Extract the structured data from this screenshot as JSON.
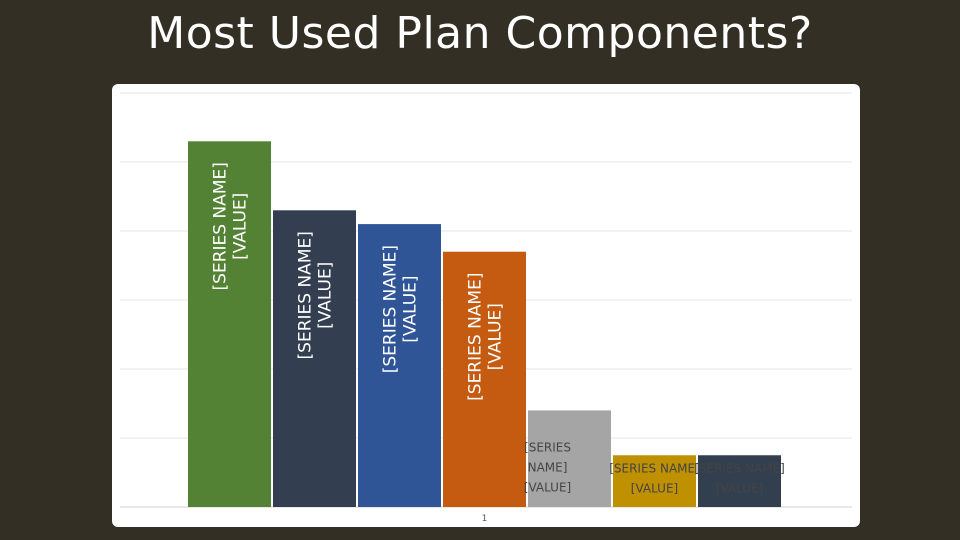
{
  "title": "Most Used Plan Components?",
  "chart_data": {
    "type": "bar",
    "title": "Most Used Plan Components?",
    "categories": [
      "1"
    ],
    "xlabel": "",
    "ylabel": "",
    "grid": true,
    "legend": "none",
    "series": [
      {
        "name": "[SERIES NAME]",
        "value_label": "[VALUE]",
        "values": [
          5.3
        ],
        "color": "#548235"
      },
      {
        "name": "[SERIES NAME]",
        "value_label": "[VALUE]",
        "values": [
          4.3
        ],
        "color": "#333f50"
      },
      {
        "name": "[SERIES NAME]",
        "value_label": "[VALUE]",
        "values": [
          4.1
        ],
        "color": "#2f5597"
      },
      {
        "name": "[SERIES NAME]",
        "value_label": "[VALUE]",
        "values": [
          3.7
        ],
        "color": "#c55a11"
      },
      {
        "name": "[SERIES NAME]",
        "value_label": "[VALUE]",
        "values": [
          1.4
        ],
        "color": "#a5a5a5"
      },
      {
        "name": "[SERIES NAME]",
        "value_label": "[VALUE]",
        "values": [
          0.75
        ],
        "color": "#bf9000"
      },
      {
        "name": "[SERIES NAME]",
        "value_label": "[VALUE]",
        "values": [
          0.75
        ],
        "color": "#323f4f"
      }
    ]
  }
}
